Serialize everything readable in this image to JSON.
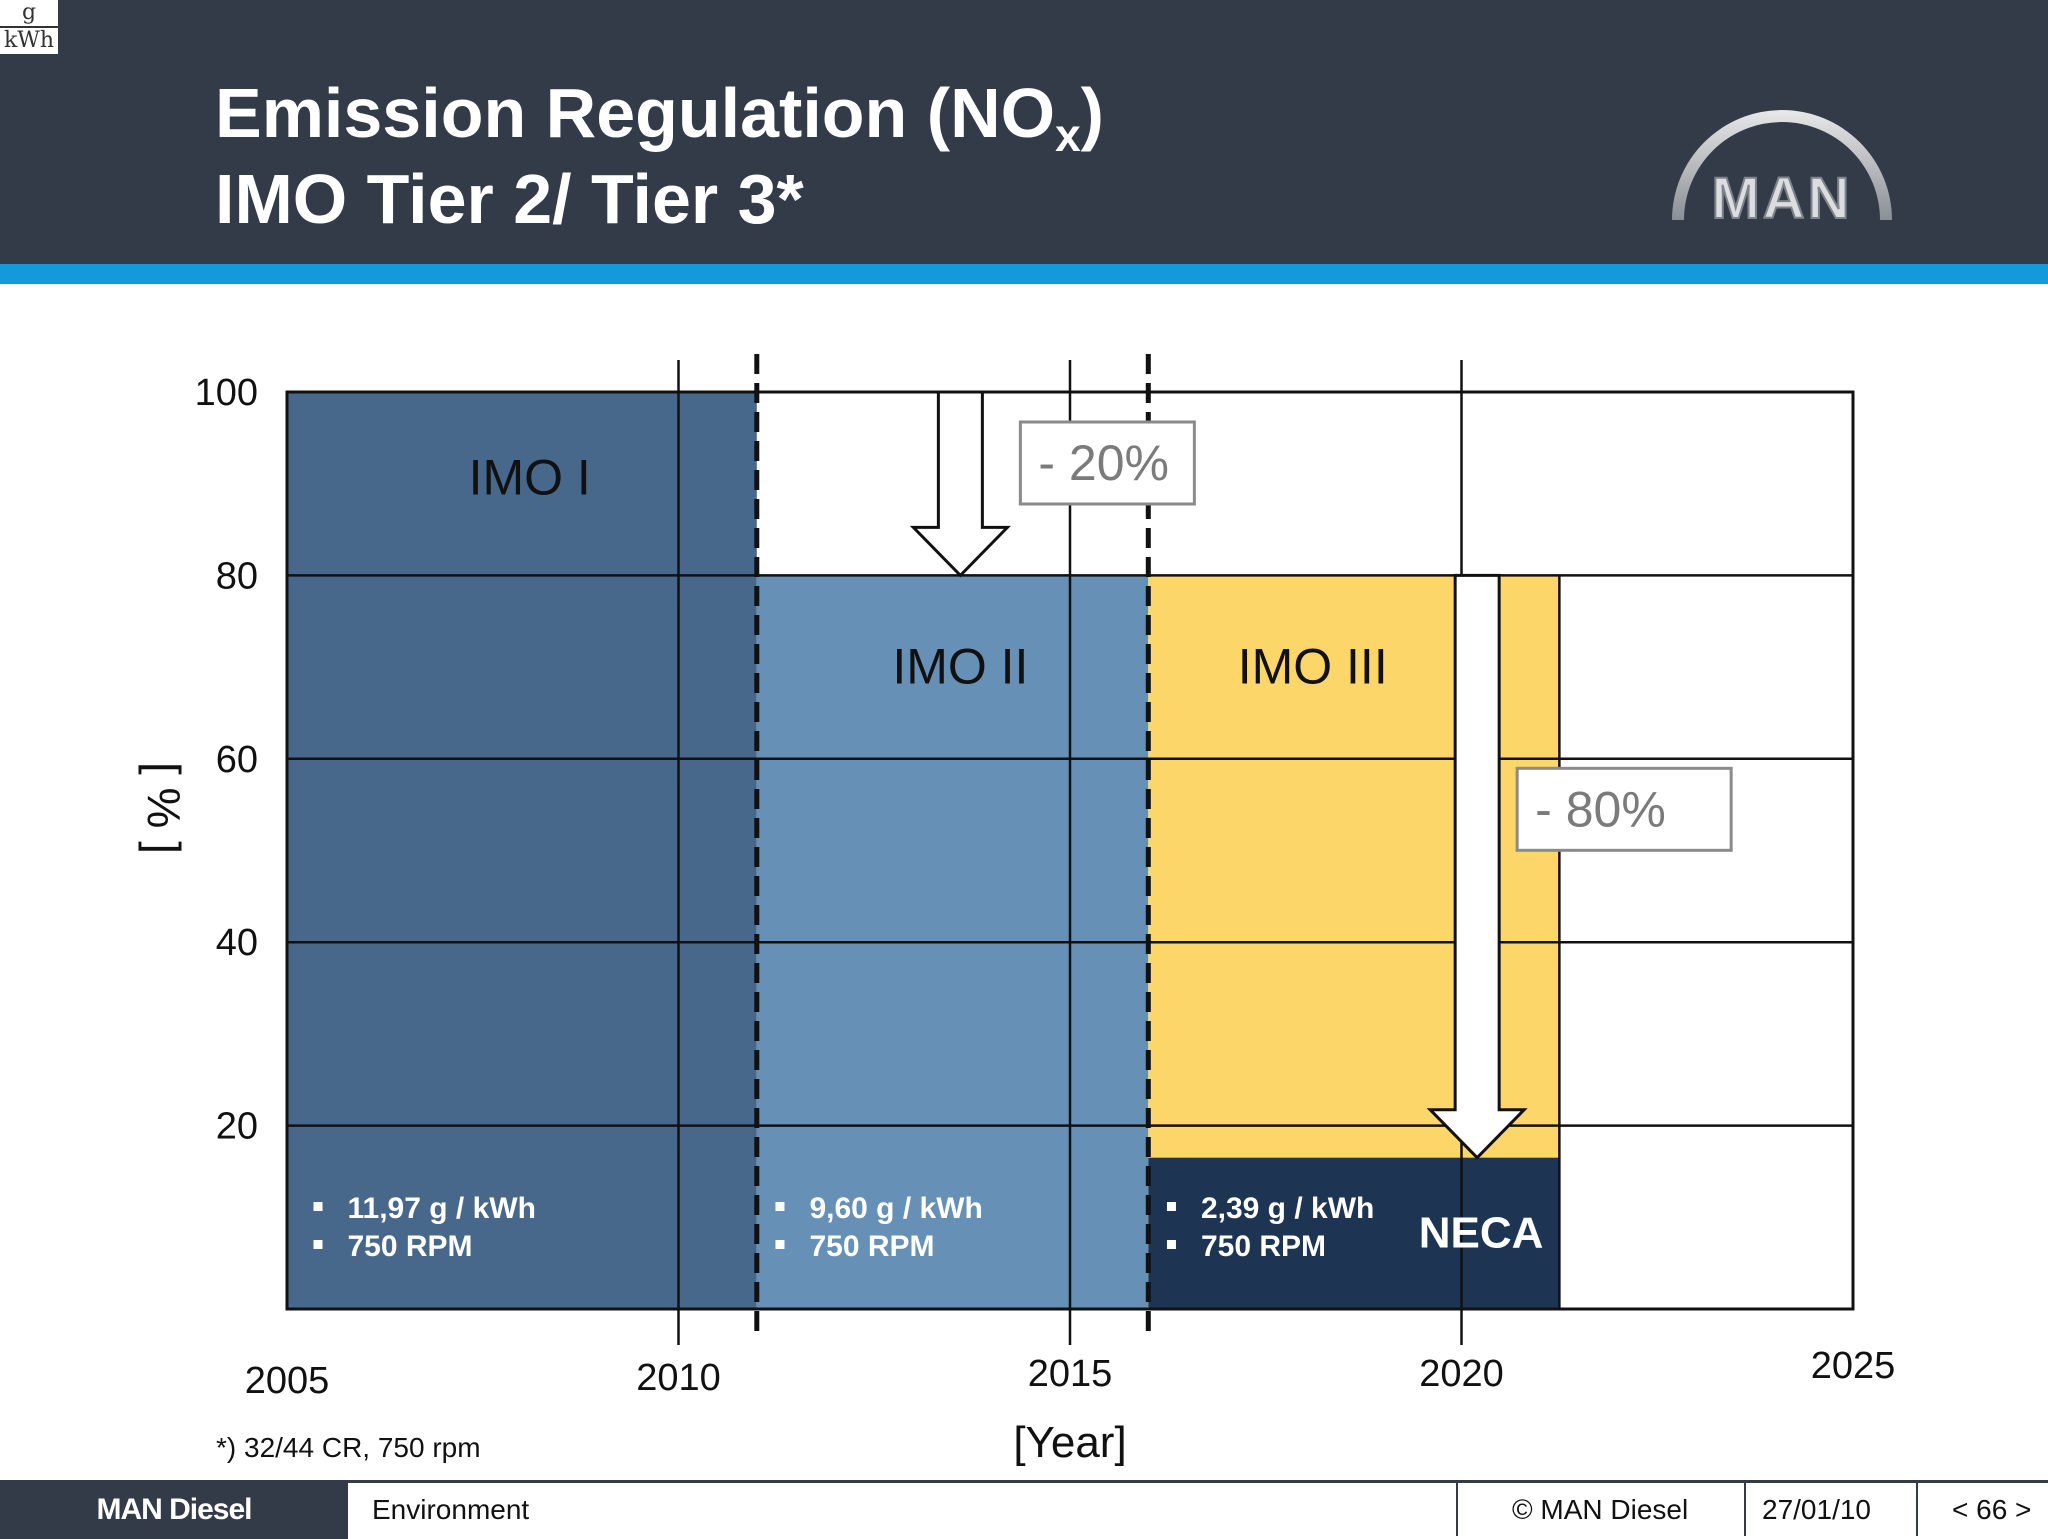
{
  "unit_fraction": {
    "numerator": "g",
    "denominator": "kWh"
  },
  "header": {
    "title_line1_prefix": "Emission Regulation (NO",
    "title_line1_sub": "x",
    "title_line1_suffix": ")",
    "title_line2": "IMO Tier 2/ Tier 3*",
    "logo_text": "MAN"
  },
  "colors": {
    "header_bg": "#333b48",
    "accent_stripe": "#1499da",
    "imo1": "#47688b",
    "imo2": "#6690b6",
    "imo3": "#fcd668",
    "neca": "#1e3453"
  },
  "chart_data": {
    "type": "area",
    "ylabel": "[ % ]",
    "xlabel": "[Year]",
    "xlim": [
      2005,
      2025
    ],
    "ylim": [
      0,
      100
    ],
    "x_ticks": [
      "2005",
      "2010",
      "2015",
      "2020",
      "2025"
    ],
    "y_ticks": [
      "100",
      "80",
      "60",
      "40",
      "20"
    ],
    "grid": true,
    "tier_boundaries": [
      2011,
      2016
    ],
    "regions": [
      {
        "name": "IMO I",
        "x_start": 2005,
        "x_end": 2011,
        "value": 100,
        "color_key": "imo1",
        "bullets": [
          "11,97 g / kWh",
          "750 RPM"
        ]
      },
      {
        "name": "IMO II",
        "x_start": 2011,
        "x_end": 2016,
        "value": 80,
        "color_key": "imo2",
        "bullets": [
          "9,60 g / kWh",
          "750 RPM"
        ]
      },
      {
        "name": "IMO III",
        "x_start": 2016,
        "x_end": 2021.25,
        "value": 80,
        "color_key": "imo3",
        "bullets": []
      },
      {
        "name": "NECA",
        "x_start": 2016,
        "x_end": 2021.25,
        "value": 16.5,
        "color_key": "neca",
        "bullets": [
          "2,39 g / kWh",
          "750 RPM"
        ]
      }
    ],
    "annotations": [
      {
        "text": "- 20%",
        "arrow_x": 2013.6,
        "from": 100,
        "to": 80
      },
      {
        "text": "- 80%",
        "arrow_x": 2020.2,
        "from": 80,
        "to": 16.5
      }
    ]
  },
  "footnote": "*) 32/44 CR, 750 rpm",
  "footer": {
    "brand": "MAN Diesel",
    "section": "Environment",
    "copyright": "© MAN Diesel",
    "date": "27/01/10",
    "page": "< 66 >"
  }
}
